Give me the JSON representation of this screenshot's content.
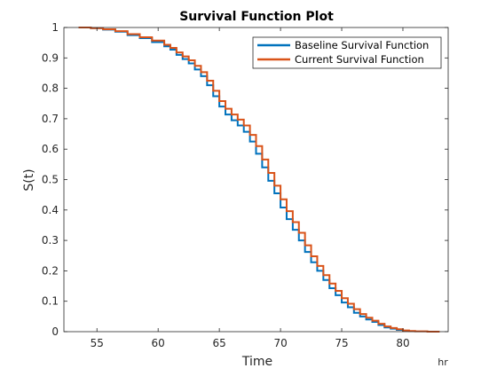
{
  "chart_data": {
    "type": "line",
    "title": "Survival Function Plot",
    "xlabel": "Time",
    "ylabel": "S(t)",
    "x_unit": "hr",
    "xlim": [
      52.3,
      83.7
    ],
    "ylim": [
      0,
      1
    ],
    "x_ticks": [
      55,
      60,
      65,
      70,
      75,
      80
    ],
    "y_ticks": [
      0,
      0.1,
      0.2,
      0.3,
      0.4,
      0.5,
      0.6,
      0.7,
      0.8,
      0.9,
      1
    ],
    "x_tick_labels": [
      "55",
      "60",
      "65",
      "70",
      "75",
      "80"
    ],
    "y_tick_labels": [
      "0",
      "0.1",
      "0.2",
      "0.3",
      "0.4",
      "0.5",
      "0.6",
      "0.7",
      "0.8",
      "0.9",
      "1"
    ],
    "grid": false,
    "legend_position": "top-right",
    "series": [
      {
        "name": "Baseline Survival Function",
        "color": "#0072BD",
        "x": [
          53.5,
          54.5,
          55.5,
          56.5,
          57.5,
          58.5,
          59.5,
          60.5,
          61.0,
          61.5,
          62.0,
          62.5,
          63.0,
          63.5,
          64.0,
          64.5,
          65.0,
          65.5,
          66.0,
          66.5,
          67.0,
          67.5,
          68.0,
          68.5,
          69.0,
          69.5,
          70.0,
          70.5,
          71.0,
          71.5,
          72.0,
          72.5,
          73.0,
          73.5,
          74.0,
          74.5,
          75.0,
          75.5,
          76.0,
          76.5,
          77.0,
          77.5,
          78.0,
          78.5,
          79.0,
          79.5,
          80.0,
          80.5
        ],
        "y": [
          1.0,
          0.998,
          0.993,
          0.986,
          0.975,
          0.965,
          0.952,
          0.938,
          0.927,
          0.91,
          0.896,
          0.882,
          0.862,
          0.84,
          0.81,
          0.774,
          0.74,
          0.714,
          0.695,
          0.678,
          0.657,
          0.625,
          0.585,
          0.54,
          0.496,
          0.455,
          0.408,
          0.37,
          0.335,
          0.3,
          0.262,
          0.228,
          0.2,
          0.17,
          0.143,
          0.12,
          0.096,
          0.08,
          0.062,
          0.05,
          0.04,
          0.032,
          0.022,
          0.014,
          0.01,
          0.006,
          0.003,
          0.0
        ]
      },
      {
        "name": "Current Survival Function",
        "color": "#D95319",
        "x": [
          53.5,
          54.5,
          55.5,
          56.5,
          57.5,
          58.5,
          59.5,
          60.5,
          61.0,
          61.5,
          62.0,
          62.5,
          63.0,
          63.5,
          64.0,
          64.5,
          65.0,
          65.5,
          66.0,
          66.5,
          67.0,
          67.5,
          68.0,
          68.5,
          69.0,
          69.5,
          70.0,
          70.5,
          71.0,
          71.5,
          72.0,
          72.5,
          73.0,
          73.5,
          74.0,
          74.5,
          75.0,
          75.5,
          76.0,
          76.5,
          77.0,
          77.5,
          78.0,
          78.5,
          79.0,
          79.5,
          80.0,
          80.5,
          81.0,
          82.0,
          83.0
        ],
        "y": [
          1.0,
          0.998,
          0.994,
          0.988,
          0.978,
          0.968,
          0.957,
          0.943,
          0.933,
          0.918,
          0.905,
          0.892,
          0.874,
          0.853,
          0.825,
          0.792,
          0.758,
          0.733,
          0.714,
          0.697,
          0.678,
          0.647,
          0.61,
          0.566,
          0.522,
          0.48,
          0.435,
          0.396,
          0.36,
          0.325,
          0.284,
          0.248,
          0.216,
          0.186,
          0.158,
          0.134,
          0.11,
          0.092,
          0.074,
          0.058,
          0.046,
          0.036,
          0.026,
          0.017,
          0.012,
          0.008,
          0.004,
          0.002,
          0.001,
          0.0,
          0.0
        ]
      }
    ]
  }
}
